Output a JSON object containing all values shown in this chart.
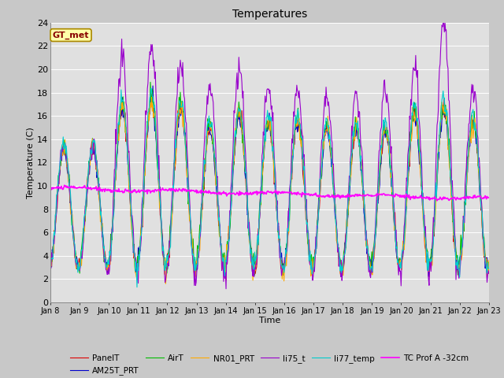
{
  "title": "Temperatures",
  "xlabel": "Time",
  "ylabel": "Temperature (C)",
  "ylim": [
    0,
    24
  ],
  "yticks": [
    0,
    2,
    4,
    6,
    8,
    10,
    12,
    14,
    16,
    18,
    20,
    22,
    24
  ],
  "annotation": "GT_met",
  "fig_bg_color": "#c8c8c8",
  "plot_bg_color": "#e0e0e0",
  "series": [
    {
      "name": "PanelT",
      "color": "#dd0000",
      "lw": 0.8
    },
    {
      "name": "AM25T_PRT",
      "color": "#0000cc",
      "lw": 0.8
    },
    {
      "name": "AirT",
      "color": "#00bb00",
      "lw": 0.8
    },
    {
      "name": "NR01_PRT",
      "color": "#ffaa00",
      "lw": 0.8
    },
    {
      "name": "li75_t",
      "color": "#9900cc",
      "lw": 0.8
    },
    {
      "name": "li77_temp",
      "color": "#00cccc",
      "lw": 0.8
    },
    {
      "name": "TC Prof A -32cm",
      "color": "#ff00ff",
      "lw": 1.2
    }
  ],
  "xtick_labels": [
    "Jan 8",
    "Jan 9",
    "Jan 10",
    "Jan 11",
    "Jan 12",
    "Jan 13",
    "Jan 14",
    "Jan 15",
    "Jan 16",
    "Jan 17",
    "Jan 18",
    "Jan 19",
    "Jan 20",
    "Jan 21",
    "Jan 22",
    "Jan 23"
  ]
}
